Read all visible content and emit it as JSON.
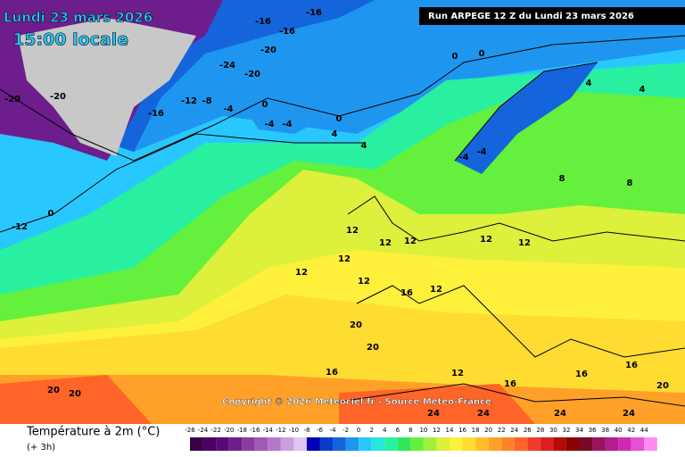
{
  "header": {
    "date": "Lundi 23 mars 2026",
    "time": "15:00 locale",
    "run": "Run ARPEGE 12 Z du Lundi 23 mars 2026"
  },
  "copyright": "Copyright © 2026 Meteociel.fr - Source Meteo-France",
  "legend": {
    "title": "Température à 2m (°C)",
    "step": "(+ 3h)",
    "ticks": [
      -26,
      -24,
      -22,
      -20,
      -18,
      -16,
      -14,
      -12,
      -10,
      -8,
      -6,
      -4,
      -2,
      0,
      2,
      4,
      6,
      8,
      10,
      12,
      14,
      16,
      18,
      20,
      22,
      24,
      26,
      28,
      30,
      32,
      34,
      36,
      38,
      40,
      42,
      44
    ],
    "colors": [
      "#3c0046",
      "#4b0064",
      "#5a0a78",
      "#6e1e8c",
      "#8c3ca0",
      "#a05ab4",
      "#b478c8",
      "#c8a0dc",
      "#dcc8f0",
      "#0000b4",
      "#0a3cc8",
      "#1464dc",
      "#1e96f0",
      "#28c8ff",
      "#28e6dc",
      "#28f0a0",
      "#32e65a",
      "#64f03c",
      "#a0f03c",
      "#dcf03c",
      "#fff03c",
      "#ffdc32",
      "#ffbe28",
      "#ffa028",
      "#ff8228",
      "#ff6428",
      "#f03c28",
      "#dc1e1e",
      "#b40a0a",
      "#8c0000",
      "#780a28",
      "#96145a",
      "#b41e8c",
      "#d228b4",
      "#e650d2",
      "#ff8cf0"
    ]
  },
  "map_labels": [
    -16,
    -16,
    -16,
    -20,
    -24,
    -20,
    -12,
    -8,
    -4,
    0,
    -4,
    -4,
    0,
    4,
    0,
    0,
    -20,
    -20,
    -16,
    -12,
    0,
    4,
    12,
    12,
    12,
    12,
    12,
    12,
    16,
    12,
    12,
    12,
    8,
    8,
    4,
    4,
    -4,
    -4,
    16,
    20,
    20,
    20,
    20,
    24,
    24,
    24,
    24,
    16,
    12,
    16,
    16,
    20
  ]
}
